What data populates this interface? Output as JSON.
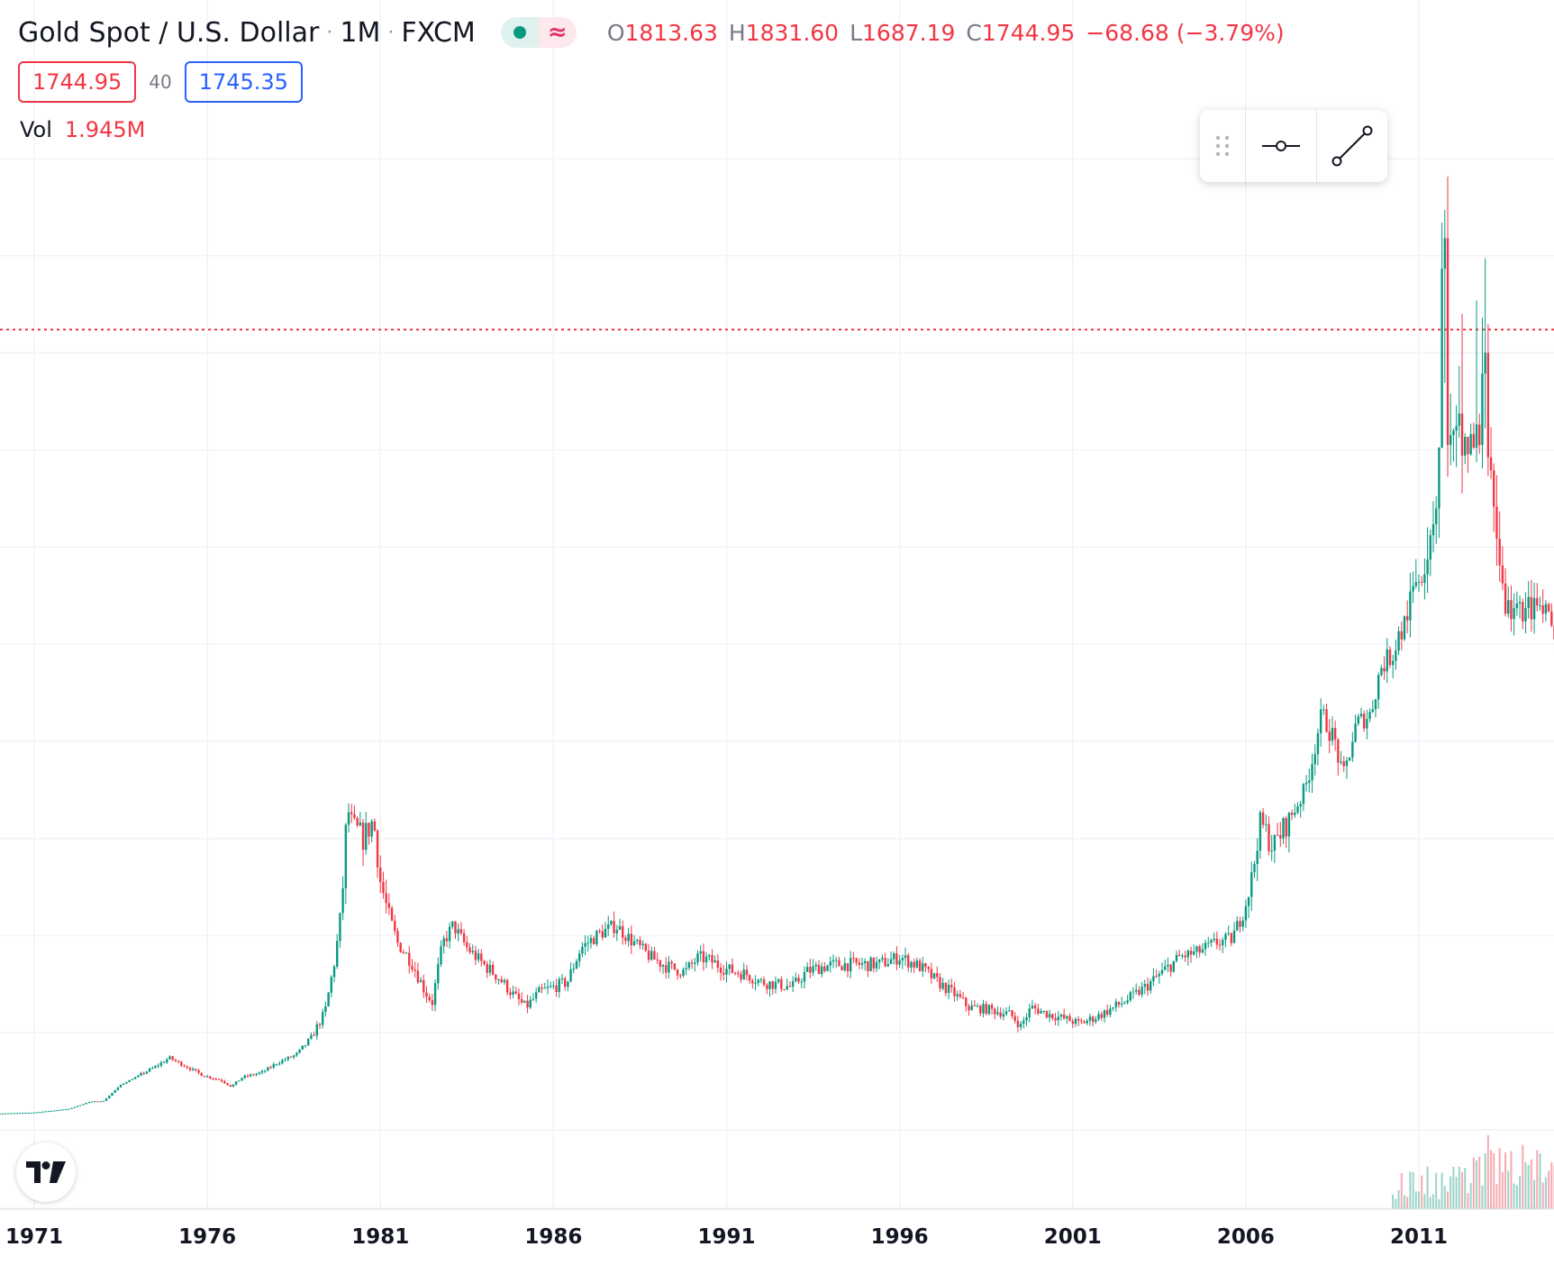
{
  "header": {
    "symbol": "Gold Spot / U.S. Dollar",
    "interval": "1M",
    "exchange": "FXCM",
    "status_market": "live-dot-icon",
    "status_delay": "≈",
    "ohlc": {
      "open_label": "O",
      "open": "1813.63",
      "high_label": "H",
      "high": "1831.60",
      "low_label": "L",
      "low": "1687.19",
      "close_label": "C",
      "close": "1744.95",
      "change": "−68.68 (−3.79%)"
    }
  },
  "quote": {
    "bid": "1744.95",
    "spread": "40",
    "ask": "1745.35"
  },
  "volume": {
    "label": "Vol",
    "value": "1.945M"
  },
  "toolbox": {
    "grip_icon": "drag-grip-icon",
    "tools": [
      "horizontal-line-icon",
      "trend-line-icon"
    ]
  },
  "logo": "tradingview-logo-icon",
  "colors": {
    "up": "#089981",
    "down": "#f23645",
    "grid": "#f0f3fa",
    "price_line": "#f23645"
  },
  "chart_data": {
    "type": "candlestick",
    "title": "Gold Spot / U.S. Dollar",
    "interval": "1M",
    "x_tick_labels": [
      "1971",
      "1976",
      "1981",
      "1986",
      "1991",
      "1996",
      "2001",
      "2006",
      "2011"
    ],
    "x_range": [
      1970.0,
      2015.3
    ],
    "y_range": [
      0,
      1920
    ],
    "last_price": 1744.95,
    "grid": true,
    "series": [
      {
        "values": [
          [
            1970.0,
            35.2
          ],
          [
            1971.0,
            38
          ],
          [
            1972.0,
            48
          ],
          [
            1972.6,
            68
          ],
          [
            1973.0,
            70
          ],
          [
            1973.5,
            115
          ],
          [
            1974.0,
            140
          ],
          [
            1974.5,
            165
          ],
          [
            1974.9,
            190
          ],
          [
            1975.4,
            165
          ],
          [
            1975.9,
            140
          ],
          [
            1976.4,
            128
          ],
          [
            1976.7,
            110
          ],
          [
            1977.0,
            135
          ],
          [
            1977.6,
            150
          ],
          [
            1978.0,
            175
          ],
          [
            1978.6,
            200
          ],
          [
            1979.0,
            235
          ],
          [
            1979.4,
            290
          ],
          [
            1979.7,
            400
          ],
          [
            1979.9,
            525
          ],
          [
            1980.05,
            680
          ],
          [
            1980.2,
            640
          ],
          [
            1980.5,
            620
          ],
          [
            1980.8,
            650
          ],
          [
            1981.0,
            550
          ],
          [
            1981.5,
            430
          ],
          [
            1981.9,
            390
          ],
          [
            1982.3,
            330
          ],
          [
            1982.5,
            310
          ],
          [
            1982.8,
            430
          ],
          [
            1983.1,
            470
          ],
          [
            1983.5,
            420
          ],
          [
            1983.9,
            390
          ],
          [
            1984.4,
            360
          ],
          [
            1984.9,
            320
          ],
          [
            1985.2,
            300
          ],
          [
            1985.6,
            330
          ],
          [
            1986.0,
            340
          ],
          [
            1986.4,
            350
          ],
          [
            1986.8,
            420
          ],
          [
            1987.3,
            450
          ],
          [
            1987.8,
            470
          ],
          [
            1988.2,
            440
          ],
          [
            1988.8,
            400
          ],
          [
            1989.3,
            380
          ],
          [
            1989.8,
            370
          ],
          [
            1990.2,
            400
          ],
          [
            1990.6,
            390
          ],
          [
            1991.0,
            375
          ],
          [
            1991.6,
            365
          ],
          [
            1992.0,
            350
          ],
          [
            1992.5,
            345
          ],
          [
            1992.9,
            340
          ],
          [
            1993.3,
            370
          ],
          [
            1993.7,
            380
          ],
          [
            1994.2,
            385
          ],
          [
            1994.8,
            385
          ],
          [
            1995.4,
            385
          ],
          [
            1996.0,
            400
          ],
          [
            1996.6,
            380
          ],
          [
            1997.1,
            350
          ],
          [
            1997.6,
            325
          ],
          [
            1998.0,
            300
          ],
          [
            1998.6,
            295
          ],
          [
            1999.2,
            285
          ],
          [
            1999.5,
            260
          ],
          [
            1999.8,
            300
          ],
          [
            2000.3,
            285
          ],
          [
            2000.8,
            275
          ],
          [
            2001.2,
            265
          ],
          [
            2001.7,
            280
          ],
          [
            2002.2,
            300
          ],
          [
            2002.7,
            320
          ],
          [
            2003.1,
            340
          ],
          [
            2003.6,
            370
          ],
          [
            2004.1,
            400
          ],
          [
            2004.6,
            410
          ],
          [
            2005.1,
            430
          ],
          [
            2005.6,
            440
          ],
          [
            2005.9,
            495
          ],
          [
            2006.2,
            560
          ],
          [
            2006.4,
            650
          ],
          [
            2006.8,
            605
          ],
          [
            2007.3,
            660
          ],
          [
            2007.7,
            730
          ],
          [
            2007.9,
            810
          ],
          [
            2008.2,
            950
          ],
          [
            2008.6,
            860
          ],
          [
            2008.8,
            760
          ],
          [
            2009.2,
            920
          ],
          [
            2009.6,
            950
          ],
          [
            2009.9,
            1100
          ],
          [
            2010.3,
            1150
          ],
          [
            2010.6,
            1250
          ],
          [
            2010.9,
            1380
          ],
          [
            2011.2,
            1450
          ],
          [
            2011.5,
            1560
          ],
          [
            2011.7,
            1800
          ],
          [
            2011.9,
            1650
          ],
          [
            2012.3,
            1660
          ],
          [
            2012.6,
            1650
          ],
          [
            2012.9,
            1700
          ],
          [
            2013.1,
            1600
          ],
          [
            2013.3,
            1450
          ],
          [
            2013.5,
            1300
          ],
          [
            2013.8,
            1280
          ],
          [
            2014.2,
            1300
          ],
          [
            2014.6,
            1280
          ],
          [
            2015.0,
            1200
          ],
          [
            2015.3,
            1230
          ]
        ],
        "volume_note": "volume bars shown for 2010-2015 only"
      }
    ]
  }
}
